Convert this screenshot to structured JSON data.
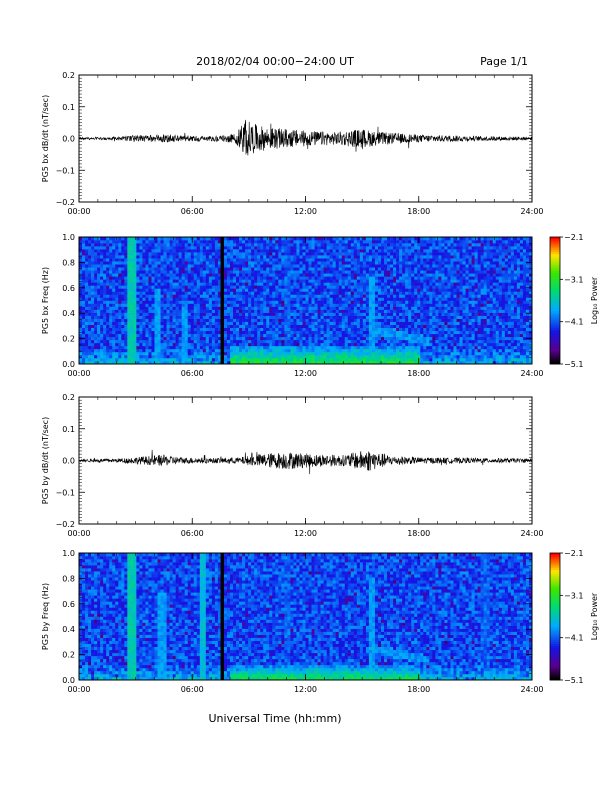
{
  "header": {
    "title": "2018/02/04  00:00−24:00 UT",
    "page": "Page 1/1"
  },
  "footer": {
    "xlabel": "Universal Time (hh:mm)"
  },
  "chart_data": [
    {
      "type": "line",
      "ylabel": "PG5 bx dB/dt (nT/sec)",
      "x_ticks": [
        "00:00",
        "06:00",
        "12:00",
        "18:00",
        "24:00"
      ],
      "y_ticks": [
        "0.2",
        "0.1",
        "0.0",
        "−0.1",
        "−0.2"
      ],
      "xlim_hours": [
        0,
        24
      ],
      "ylim": [
        -0.2,
        0.2
      ],
      "series_color": "#000000",
      "envelope": [
        {
          "x": 0,
          "amp": 0.004
        },
        {
          "x": 2,
          "amp": 0.005
        },
        {
          "x": 3,
          "amp": 0.01
        },
        {
          "x": 4.5,
          "amp": 0.012
        },
        {
          "x": 7,
          "amp": 0.008
        },
        {
          "x": 8.3,
          "amp": 0.015
        },
        {
          "x": 8.8,
          "amp": 0.06
        },
        {
          "x": 9.3,
          "amp": 0.045
        },
        {
          "x": 10,
          "amp": 0.035
        },
        {
          "x": 11,
          "amp": 0.03
        },
        {
          "x": 12,
          "amp": 0.025
        },
        {
          "x": 13.5,
          "amp": 0.02
        },
        {
          "x": 15,
          "amp": 0.03
        },
        {
          "x": 16,
          "amp": 0.02
        },
        {
          "x": 18,
          "amp": 0.012
        },
        {
          "x": 21,
          "amp": 0.008
        },
        {
          "x": 24,
          "amp": 0.005
        }
      ]
    },
    {
      "type": "heatmap",
      "ylabel": "PG5 bx Freq (Hz)",
      "x_ticks": [
        "00:00",
        "06:00",
        "12:00",
        "18:00",
        "24:00"
      ],
      "y_ticks": [
        "1.0",
        "0.8",
        "0.6",
        "0.4",
        "0.2",
        "0.0"
      ],
      "xlim_hours": [
        0,
        24
      ],
      "ylim": [
        0,
        1.0
      ],
      "colorbar": {
        "label": "Log₁₀ Power",
        "ticks": [
          "−2.1",
          "−3.1",
          "−4.1",
          "−5.1"
        ],
        "range": [
          -5.1,
          -2.1
        ]
      },
      "data_gap_hours": [
        7.5,
        7.65
      ],
      "features": [
        {
          "x": 2.8,
          "fmax": 1.0,
          "level": 0.55
        },
        {
          "x": 4.2,
          "fmax": 0.6,
          "level": 0.45
        },
        {
          "x": 5.6,
          "fmax": 0.45,
          "level": 0.45
        },
        {
          "x": 11.0,
          "fmax": 1.0,
          "level": 0.35
        },
        {
          "x": 15.5,
          "fmax": 0.7,
          "level": 0.45
        }
      ],
      "low_freq_band": {
        "from_hours": 8,
        "to_hours": 18,
        "fmax": 0.15,
        "level": 0.65
      },
      "pc1_band": {
        "from_hours": 15.5,
        "to_hours": 18.5,
        "f_start": 0.28,
        "f_end": 0.18,
        "level": 0.4
      }
    },
    {
      "type": "line",
      "ylabel": "PG5 by dB/dt (nT/sec)",
      "x_ticks": [
        "00:00",
        "06:00",
        "12:00",
        "18:00",
        "24:00"
      ],
      "y_ticks": [
        "0.2",
        "0.1",
        "0.0",
        "−0.1",
        "−0.2"
      ],
      "xlim_hours": [
        0,
        24
      ],
      "ylim": [
        -0.2,
        0.2
      ],
      "series_color": "#000000",
      "envelope": [
        {
          "x": 0,
          "amp": 0.004
        },
        {
          "x": 2,
          "amp": 0.006
        },
        {
          "x": 4.4,
          "amp": 0.018
        },
        {
          "x": 5.5,
          "amp": 0.01
        },
        {
          "x": 7,
          "amp": 0.008
        },
        {
          "x": 8.5,
          "amp": 0.01
        },
        {
          "x": 9.5,
          "amp": 0.02
        },
        {
          "x": 11,
          "amp": 0.028
        },
        {
          "x": 12.5,
          "amp": 0.02
        },
        {
          "x": 14,
          "amp": 0.018
        },
        {
          "x": 15.3,
          "amp": 0.035
        },
        {
          "x": 16.5,
          "amp": 0.015
        },
        {
          "x": 18,
          "amp": 0.01
        },
        {
          "x": 21,
          "amp": 0.008
        },
        {
          "x": 24,
          "amp": 0.006
        }
      ]
    },
    {
      "type": "heatmap",
      "ylabel": "PG5 by Freq (Hz)",
      "x_ticks": [
        "00:00",
        "06:00",
        "12:00",
        "18:00",
        "24:00"
      ],
      "y_ticks": [
        "1.0",
        "0.8",
        "0.6",
        "0.4",
        "0.2",
        "0.0"
      ],
      "xlim_hours": [
        0,
        24
      ],
      "ylim": [
        0,
        1.0
      ],
      "colorbar": {
        "label": "Log₁₀ Power",
        "ticks": [
          "−2.1",
          "−3.1",
          "−4.1",
          "−5.1"
        ],
        "range": [
          -5.1,
          -2.1
        ]
      },
      "data_gap_hours": [
        7.5,
        7.65
      ],
      "features": [
        {
          "x": 2.8,
          "fmax": 1.0,
          "level": 0.55
        },
        {
          "x": 4.4,
          "fmax": 0.7,
          "level": 0.45
        },
        {
          "x": 6.6,
          "fmax": 1.0,
          "level": 0.5
        },
        {
          "x": 11.0,
          "fmax": 1.0,
          "level": 0.35
        },
        {
          "x": 15.5,
          "fmax": 0.8,
          "level": 0.45
        },
        {
          "x": 21.5,
          "fmax": 1.0,
          "level": 0.35
        }
      ],
      "low_freq_band": {
        "from_hours": 8,
        "to_hours": 18,
        "fmax": 0.12,
        "level": 0.62
      },
      "pc1_band": {
        "from_hours": 15.5,
        "to_hours": 18.5,
        "f_start": 0.25,
        "f_end": 0.16,
        "level": 0.4
      }
    }
  ]
}
